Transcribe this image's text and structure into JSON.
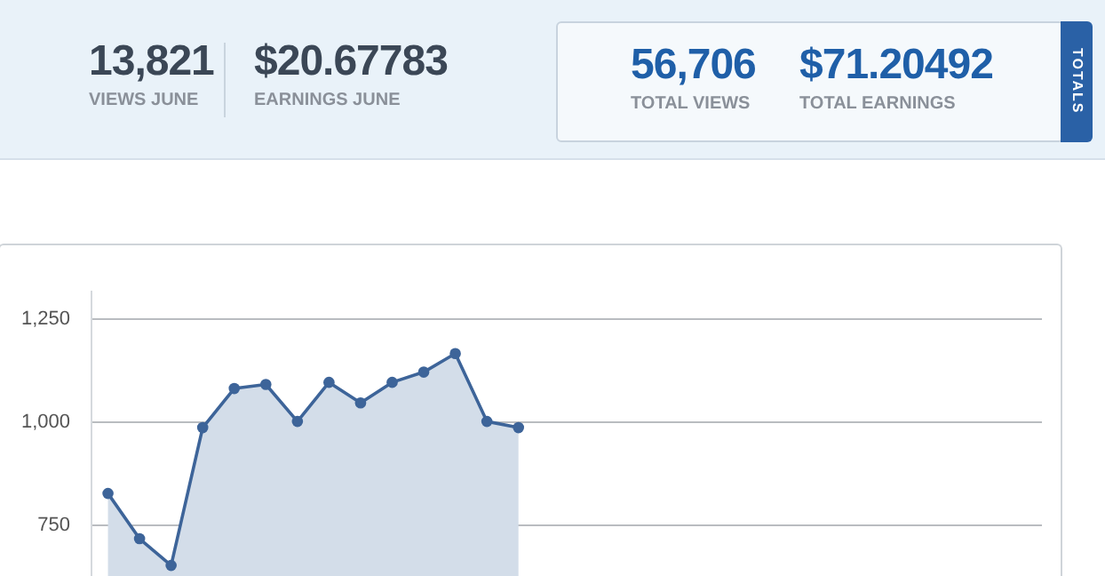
{
  "chart_data": [
    {
      "type": "other",
      "annotations": [
        "13,821",
        "VIEWS JUNE",
        "$20.67783",
        "EARNINGS JUNE",
        "56,706",
        "TOTAL VIEWS",
        "$71.20492",
        "TOTAL EARNINGS",
        "TOTALS"
      ]
    },
    {
      "type": "area",
      "categories": [
        null,
        null,
        null,
        null,
        null,
        null,
        null,
        null,
        null,
        null,
        null,
        null,
        null,
        null,
        null,
        null,
        null,
        null,
        null,
        null,
        null,
        null,
        null,
        null,
        null,
        null,
        null,
        null,
        null,
        null
      ],
      "series": [
        {
          "color": "#3d6499",
          "values": [
            825,
            715,
            650,
            985,
            1080,
            1090,
            1000,
            1095,
            1045,
            1095,
            1120,
            1165,
            1000,
            985,
            null,
            null,
            null,
            null,
            null,
            null,
            null,
            null,
            null,
            null,
            null,
            null,
            null,
            null,
            null,
            null
          ]
        }
      ],
      "ylim": [
        620,
        1320
      ],
      "yticks": [
        {
          "value": 750,
          "label": "750"
        },
        {
          "value": 1000,
          "label": "1,000"
        },
        {
          "value": 1250,
          "label": "1,250"
        }
      ],
      "grid": "y",
      "marker": "circle",
      "tick_labels": "y"
    }
  ]
}
